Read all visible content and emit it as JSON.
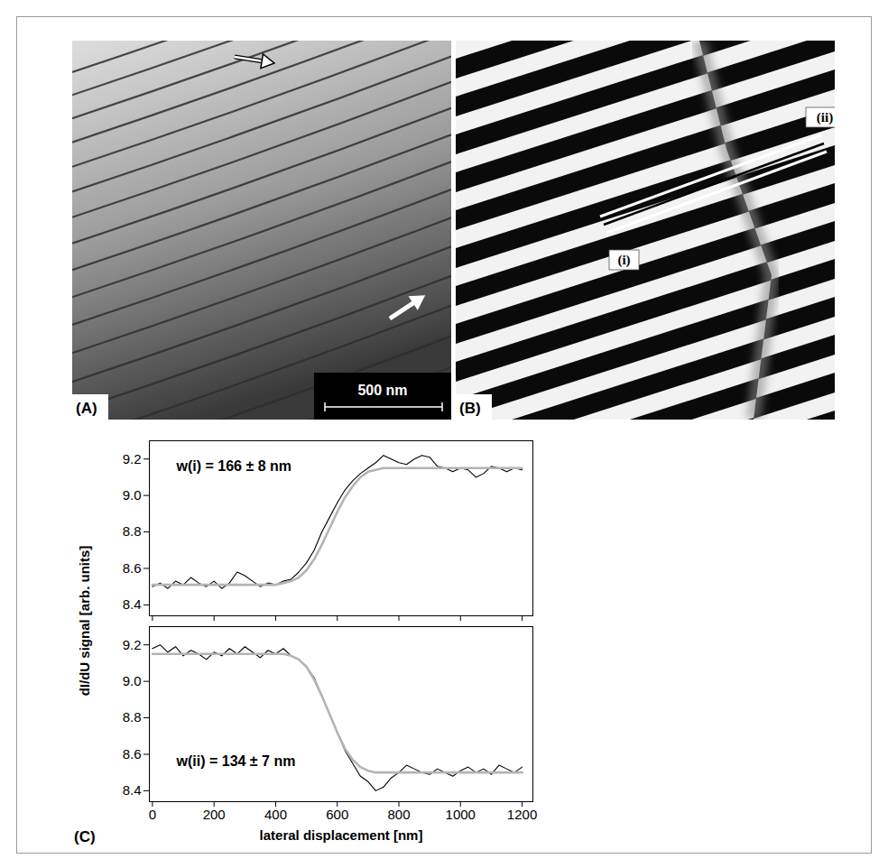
{
  "panel_a": {
    "label": "(A)",
    "scale_bar": "500 nm"
  },
  "panel_b": {
    "label": "(B)",
    "line_labels": [
      "(i)",
      "(ii)"
    ]
  },
  "panel_c": {
    "label": "(C)"
  },
  "chart_data": [
    {
      "type": "line",
      "ylabel": "dI/dU signal [arb. units]",
      "annotations": [
        "w(i) = 166 ± 8 nm"
      ],
      "x": [
        0,
        25,
        50,
        75,
        100,
        125,
        150,
        175,
        200,
        225,
        250,
        275,
        300,
        325,
        350,
        375,
        400,
        425,
        450,
        475,
        500,
        525,
        550,
        575,
        600,
        625,
        650,
        675,
        700,
        725,
        750,
        775,
        800,
        825,
        850,
        875,
        900,
        925,
        950,
        975,
        1000,
        1025,
        1050,
        1075,
        1100,
        1125,
        1150,
        1175,
        1200
      ],
      "series": [
        {
          "color": "#000000",
          "values": [
            8.5,
            8.52,
            8.49,
            8.53,
            8.51,
            8.55,
            8.52,
            8.5,
            8.53,
            8.49,
            8.52,
            8.58,
            8.56,
            8.53,
            8.5,
            8.52,
            8.51,
            8.53,
            8.54,
            8.58,
            8.63,
            8.7,
            8.8,
            8.88,
            8.96,
            9.03,
            9.08,
            9.12,
            9.15,
            9.18,
            9.22,
            9.2,
            9.18,
            9.17,
            9.2,
            9.22,
            9.21,
            9.16,
            9.15,
            9.13,
            9.15,
            9.14,
            9.1,
            9.12,
            9.16,
            9.15,
            9.13,
            9.15,
            9.14
          ]
        },
        {
          "color": "#b4b4b4",
          "values": [
            8.51,
            8.51,
            8.51,
            8.51,
            8.51,
            8.51,
            8.51,
            8.51,
            8.51,
            8.51,
            8.51,
            8.51,
            8.51,
            8.51,
            8.51,
            8.51,
            8.51,
            8.52,
            8.53,
            8.55,
            8.59,
            8.65,
            8.73,
            8.82,
            8.91,
            8.99,
            9.05,
            9.1,
            9.13,
            9.14,
            9.15,
            9.15,
            9.15,
            9.15,
            9.15,
            9.15,
            9.15,
            9.15,
            9.15,
            9.15,
            9.15,
            9.15,
            9.15,
            9.15,
            9.15,
            9.15,
            9.15,
            9.15,
            9.15
          ]
        }
      ],
      "xlim": [
        -10,
        1235
      ],
      "xticks": [
        0,
        200,
        400,
        600,
        800,
        1000,
        1200
      ],
      "ylim": [
        8.34,
        9.3
      ],
      "yticks": [
        8.4,
        8.6,
        8.8,
        {
          "value": 9,
          "label": "9.0"
        },
        9.2
      ],
      "tick_labels": "y"
    },
    {
      "type": "line",
      "xlabel": "lateral displacement [nm]",
      "annotations": [
        "w(ii) = 134 ± 7 nm"
      ],
      "x": [
        0,
        25,
        50,
        75,
        100,
        125,
        150,
        175,
        200,
        225,
        250,
        275,
        300,
        325,
        350,
        375,
        400,
        425,
        450,
        475,
        500,
        525,
        550,
        575,
        600,
        625,
        650,
        675,
        700,
        725,
        750,
        775,
        800,
        825,
        850,
        875,
        900,
        925,
        950,
        975,
        1000,
        1025,
        1050,
        1075,
        1100,
        1125,
        1150,
        1175,
        1200
      ],
      "series": [
        {
          "color": "#000000",
          "values": [
            9.18,
            9.2,
            9.16,
            9.19,
            9.14,
            9.17,
            9.15,
            9.12,
            9.16,
            9.14,
            9.18,
            9.15,
            9.19,
            9.16,
            9.13,
            9.17,
            9.15,
            9.18,
            9.14,
            9.12,
            9.08,
            9.02,
            8.92,
            8.82,
            8.72,
            8.62,
            8.55,
            8.48,
            8.45,
            8.4,
            8.42,
            8.47,
            8.5,
            8.54,
            8.52,
            8.5,
            8.49,
            8.52,
            8.5,
            8.48,
            8.51,
            8.53,
            8.5,
            8.52,
            8.49,
            8.54,
            8.52,
            8.5,
            8.53
          ]
        },
        {
          "color": "#b4b4b4",
          "values": [
            9.15,
            9.15,
            9.15,
            9.15,
            9.15,
            9.15,
            9.15,
            9.15,
            9.15,
            9.15,
            9.15,
            9.15,
            9.15,
            9.15,
            9.15,
            9.15,
            9.15,
            9.15,
            9.14,
            9.12,
            9.08,
            9.01,
            8.92,
            8.82,
            8.72,
            8.63,
            8.57,
            8.53,
            8.51,
            8.5,
            8.5,
            8.5,
            8.5,
            8.5,
            8.5,
            8.5,
            8.5,
            8.5,
            8.5,
            8.5,
            8.5,
            8.5,
            8.5,
            8.5,
            8.5,
            8.5,
            8.5,
            8.5,
            8.5
          ]
        }
      ],
      "xlim": [
        -10,
        1235
      ],
      "xticks": [
        0,
        200,
        400,
        600,
        800,
        1000,
        1200
      ],
      "ylim": [
        8.34,
        9.3
      ],
      "yticks": [
        8.4,
        8.6,
        8.8,
        {
          "value": 9,
          "label": "9.0"
        },
        9.2
      ]
    }
  ]
}
